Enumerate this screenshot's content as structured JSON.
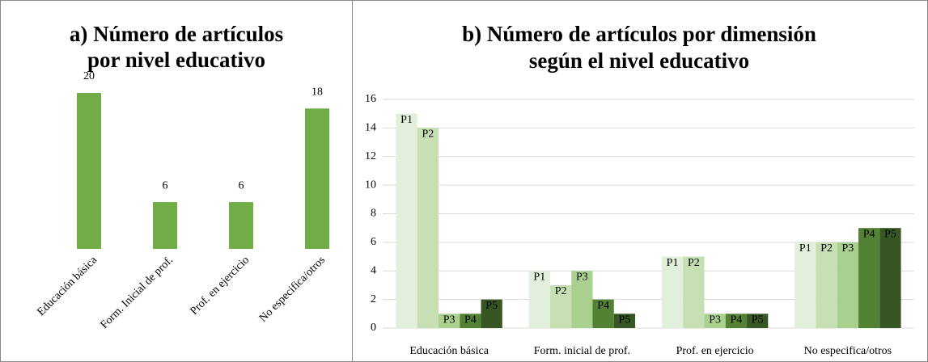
{
  "chart_data": [
    {
      "type": "bar",
      "title": [
        "a) Número de artículos",
        "por nivel educativo"
      ],
      "categories": [
        "Educación básica",
        "Form. Inicial de prof.",
        "Prof. en ejercicio",
        "No especifica/otros"
      ],
      "values": [
        20,
        6,
        6,
        18
      ],
      "color": "#70ad47",
      "ylim": [
        0,
        20
      ]
    },
    {
      "type": "bar",
      "title": [
        "b) Número de artículos por dimensión",
        "según el nivel educativo"
      ],
      "categories": [
        "Educación básica",
        "Form. inicial  de prof.",
        "Prof. en ejercicio",
        "No especifica/otros"
      ],
      "series": [
        {
          "name": "P1",
          "color": "#e2efda",
          "values": [
            15,
            4,
            5,
            6
          ]
        },
        {
          "name": "P2",
          "color": "#c6e0b4",
          "values": [
            14,
            3,
            5,
            6
          ]
        },
        {
          "name": "P3",
          "color": "#a9d08e",
          "values": [
            1,
            4,
            1,
            6
          ]
        },
        {
          "name": "P4",
          "color": "#548235",
          "values": [
            1,
            2,
            1,
            7
          ]
        },
        {
          "name": "P5",
          "color": "#375623",
          "values": [
            2,
            1,
            1,
            7
          ]
        }
      ],
      "ylim": [
        0,
        16
      ],
      "yticks": [
        0,
        2,
        4,
        6,
        8,
        10,
        12,
        14,
        16
      ],
      "grid": true
    }
  ]
}
